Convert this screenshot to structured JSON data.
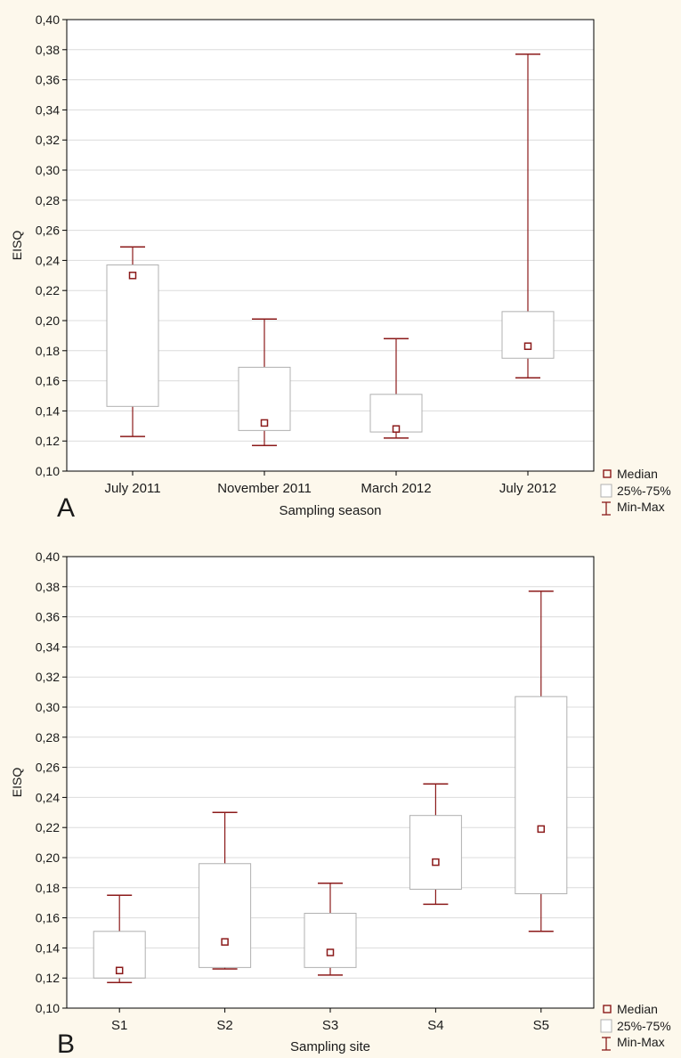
{
  "chart_data": [
    {
      "panel_label": "A",
      "type": "box",
      "xlabel": "Sampling season",
      "ylabel": "EISQ",
      "ylim": [
        0.1,
        0.4
      ],
      "yticks": [
        "0,10",
        "0,12",
        "0,14",
        "0,16",
        "0,18",
        "0,20",
        "0,22",
        "0,24",
        "0,26",
        "0,28",
        "0,30",
        "0,32",
        "0,34",
        "0,36",
        "0,38",
        "0,40"
      ],
      "grid": true,
      "legend": "right-bottom",
      "legend_entries": [
        "Median",
        "25%-75%",
        "Min-Max"
      ],
      "categories": [
        "July 2011",
        "November 2011",
        "March 2012",
        "July 2012"
      ],
      "min": [
        0.123,
        0.117,
        0.122,
        0.162
      ],
      "q1": [
        0.143,
        0.127,
        0.126,
        0.175
      ],
      "median": [
        0.23,
        0.132,
        0.128,
        0.183
      ],
      "q3": [
        0.237,
        0.169,
        0.151,
        0.206
      ],
      "max": [
        0.249,
        0.201,
        0.188,
        0.377
      ]
    },
    {
      "panel_label": "B",
      "type": "box",
      "xlabel": "Sampling site",
      "ylabel": "EISQ",
      "ylim": [
        0.1,
        0.4
      ],
      "yticks": [
        "0,10",
        "0,12",
        "0,14",
        "0,16",
        "0,18",
        "0,20",
        "0,22",
        "0,24",
        "0,26",
        "0,28",
        "0,30",
        "0,32",
        "0,34",
        "0,36",
        "0,38",
        "0,40"
      ],
      "grid": true,
      "legend": "right-bottom",
      "legend_entries": [
        "Median",
        "25%-75%",
        "Min-Max"
      ],
      "categories": [
        "S1",
        "S2",
        "S3",
        "S4",
        "S5"
      ],
      "min": [
        0.117,
        0.126,
        0.122,
        0.169,
        0.151
      ],
      "q1": [
        0.12,
        0.127,
        0.127,
        0.179,
        0.176
      ],
      "median": [
        0.125,
        0.144,
        0.137,
        0.197,
        0.219
      ],
      "q3": [
        0.151,
        0.196,
        0.163,
        0.228,
        0.307
      ],
      "max": [
        0.175,
        0.23,
        0.183,
        0.249,
        0.377
      ]
    }
  ],
  "colors": {
    "background": "#fdf8ec",
    "plot_area": "#ffffff",
    "grid": "#dcdcdc",
    "box_edge": "#b0b0b0",
    "whisker": "#8b1a1a",
    "median_marker": "#8b1a1a",
    "axis": "#000000"
  }
}
